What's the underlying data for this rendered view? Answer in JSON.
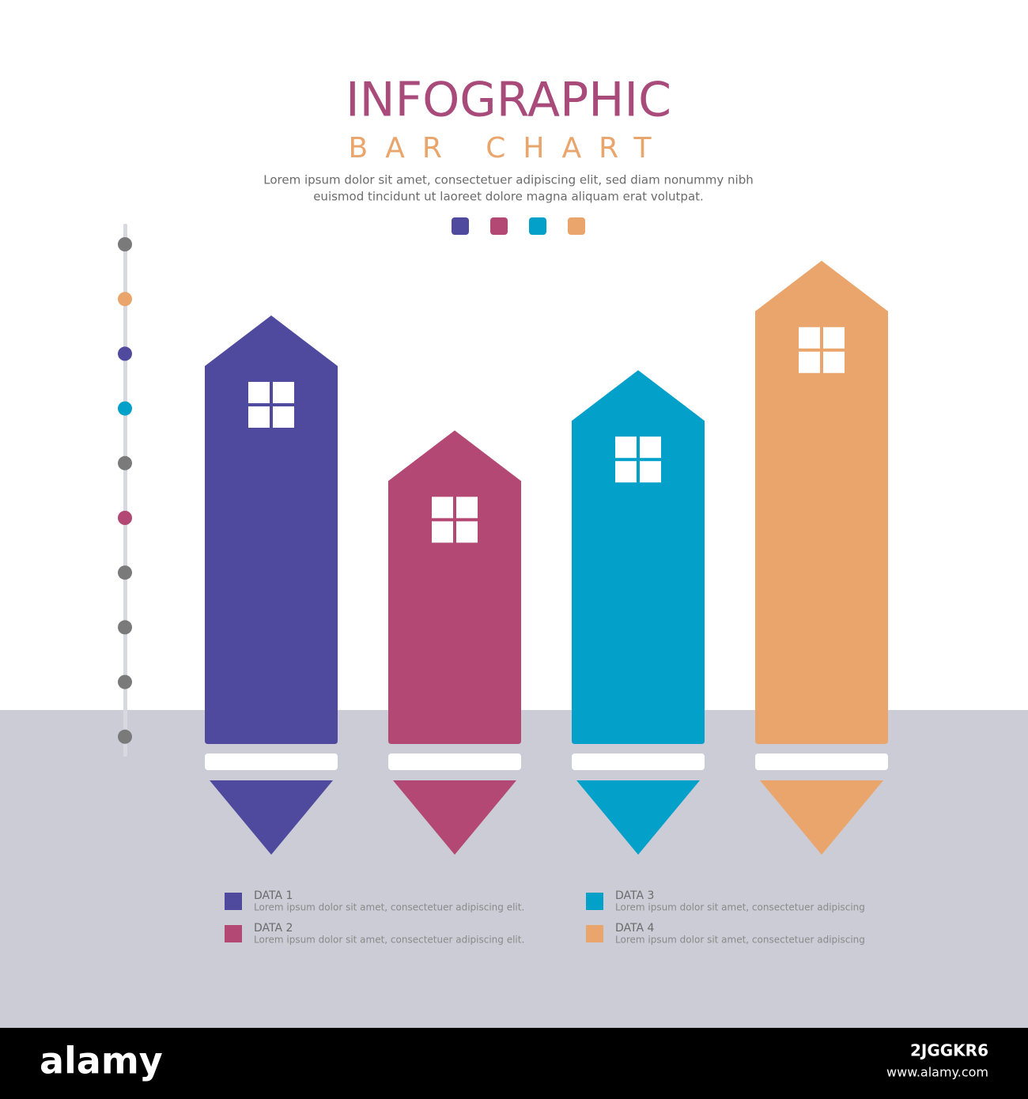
{
  "chart_data": {
    "type": "bar",
    "title": "INFOGRAPHIC",
    "subtitle": "BAR CHART",
    "description": [
      "Lorem ipsum dolor sit amet, consectetuer adipiscing elit, sed diam nonummy nibh",
      "euismod tincidunt ut laoreet dolore magna aliquam erat volutpat."
    ],
    "categories": [
      "DATA 1",
      "DATA 2",
      "DATA 3",
      "DATA 4"
    ],
    "descriptions": [
      "Lorem ipsum dolor sit amet, consectetuer adipiscing elit.",
      "Lorem ipsum dolor sit amet, consectetuer adipiscing elit.",
      "Lorem ipsum dolor sit amet, consectetuer adipiscing",
      "Lorem ipsum dolor sit amet, consectetuer adipiscing"
    ],
    "values": [
      7.7,
      5.6,
      6.7,
      8.7
    ],
    "colors": [
      "#4f4a9e",
      "#b24873",
      "#03a0ca",
      "#e9a56b"
    ],
    "ylim": [
      0,
      9
    ]
  },
  "watermark": {
    "brand": "alamy",
    "code": "2JGGKR6",
    "url": "www.alamy.com"
  }
}
